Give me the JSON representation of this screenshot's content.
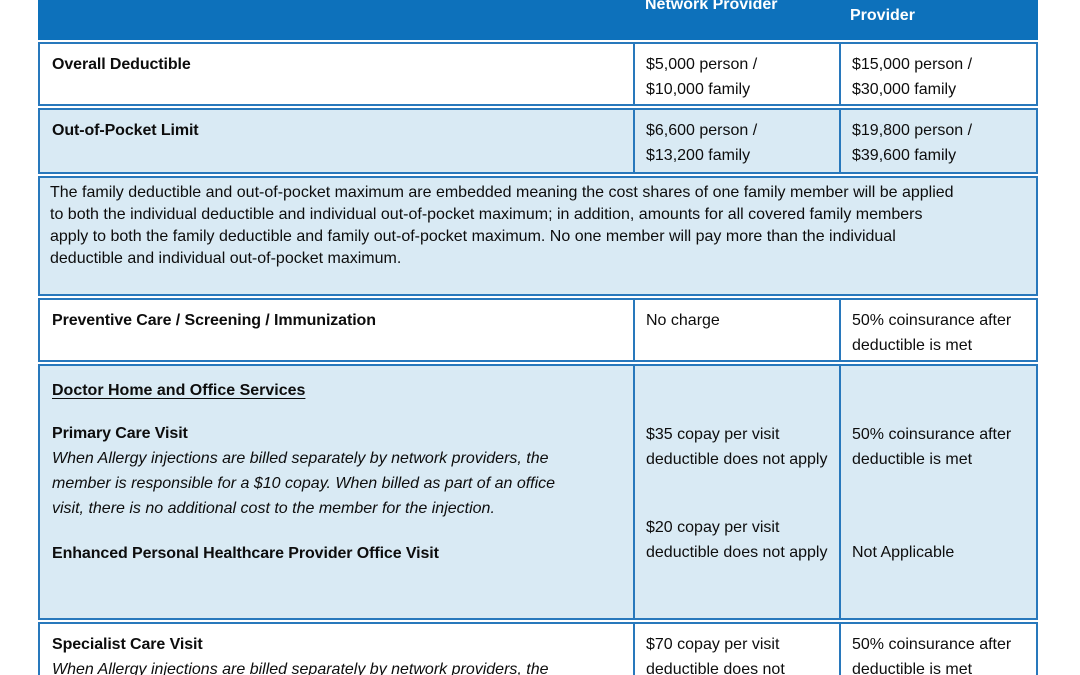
{
  "page": {
    "header": {
      "network_label": "Network Provider",
      "non_network_label": "Provider"
    },
    "rows": {
      "overall_deductible": {
        "name": "Overall Deductible",
        "network": "$5,000 person /\n$10,000 family",
        "non_network": "$15,000 person /\n$30,000 family"
      },
      "oop_limit": {
        "name": "Out-of-Pocket Limit",
        "network": "$6,600 person /\n$13,200 family",
        "non_network": "$19,800 person /\n$39,600 family"
      },
      "embedded_note": "The family deductible and out-of-pocket maximum are embedded meaning the cost shares of one family member will be applied\nto both the individual deductible and individual out-of-pocket maximum; in addition, amounts for all covered family members\napply to both the family deductible and family out-of-pocket maximum. No one member will pay more than the individual\ndeductible and individual out-of-pocket maximum.",
      "preventive": {
        "name": "Preventive Care / Screening / Immunization",
        "network": "No charge",
        "non_network": "50% coinsurance after\ndeductible is met"
      },
      "doctor_services": {
        "section_title": "Doctor Home and Office Services",
        "primary_care": {
          "name": "Primary Care Visit",
          "note": "When Allergy injections are billed separately by network providers, the\nmember is responsible for a $10 copay. When billed as part of an office\nvisit, there is no additional cost to the member for the injection.",
          "network": "$35 copay per visit\ndeductible does not apply",
          "non_network": "50% coinsurance after\ndeductible is met"
        },
        "enhanced_php": {
          "name": "Enhanced Personal Healthcare Provider Office Visit",
          "network": "$20 copay per visit\ndeductible does not apply",
          "non_network": "Not Applicable"
        }
      },
      "specialist": {
        "name": "Specialist Care Visit",
        "note": "When Allergy injections are billed separately by network providers, the",
        "network": "$70 copay per visit\ndeductible does not",
        "non_network": "50% coinsurance after\ndeductible is met"
      }
    },
    "colors": {
      "header_blue": "#0D71BB",
      "border_blue": "#2878BC",
      "light_blue": "#D9EAF4"
    }
  }
}
